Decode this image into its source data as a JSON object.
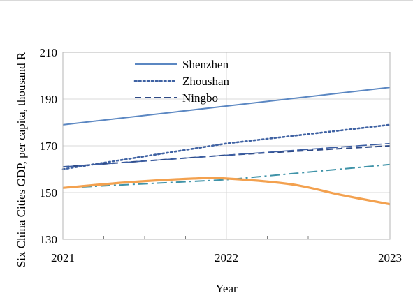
{
  "chart_data": {
    "type": "line",
    "title": "",
    "xlabel": "Year",
    "ylabel": "Six China Cities GDP, per capita, thousand R",
    "x": [
      2021,
      2022,
      2023
    ],
    "xlim": [
      2021,
      2023
    ],
    "ylim": [
      130,
      210
    ],
    "yticks": [
      130,
      150,
      170,
      190,
      210
    ],
    "xticks": [
      2021,
      2022,
      2023
    ],
    "grid": true,
    "legend_position": "top-center",
    "series": [
      {
        "name": "Shenzhen",
        "x": [
          2021,
          2022,
          2023
        ],
        "values": [
          179,
          187,
          195
        ],
        "color": "#5b87c2",
        "style": "solid",
        "width": 2,
        "in_legend": true
      },
      {
        "name": "Zhoushan",
        "x": [
          2021,
          2022,
          2023
        ],
        "values": [
          160,
          171,
          179
        ],
        "color": "#3f62a3",
        "style": "dotted",
        "width": 2.6,
        "in_legend": true
      },
      {
        "name": "Ningbo",
        "x": [
          2021,
          2022,
          2023
        ],
        "values": [
          161,
          166,
          170
        ],
        "color": "#2e4a86",
        "style": "dashed",
        "width": 2,
        "in_legend": true
      },
      {
        "name": "",
        "x": [
          2021,
          2022,
          2023
        ],
        "values": [
          161,
          166,
          171
        ],
        "color": "#3d5fa3",
        "style": "longdash",
        "width": 1.6,
        "in_legend": false
      },
      {
        "name": "",
        "x": [
          2021,
          2022,
          2023
        ],
        "values": [
          152,
          155.5,
          162
        ],
        "color": "#3f93a8",
        "style": "dashdot",
        "width": 2,
        "in_legend": false
      },
      {
        "name": "",
        "x": [
          2021,
          2021.4,
          2021.8,
          2022,
          2022.4,
          2022.7,
          2023
        ],
        "values": [
          152,
          154.4,
          156,
          156,
          153.5,
          149,
          145
        ],
        "color": "#f3a14f",
        "style": "solid",
        "width": 3.2,
        "in_legend": false,
        "smooth": true
      }
    ]
  }
}
